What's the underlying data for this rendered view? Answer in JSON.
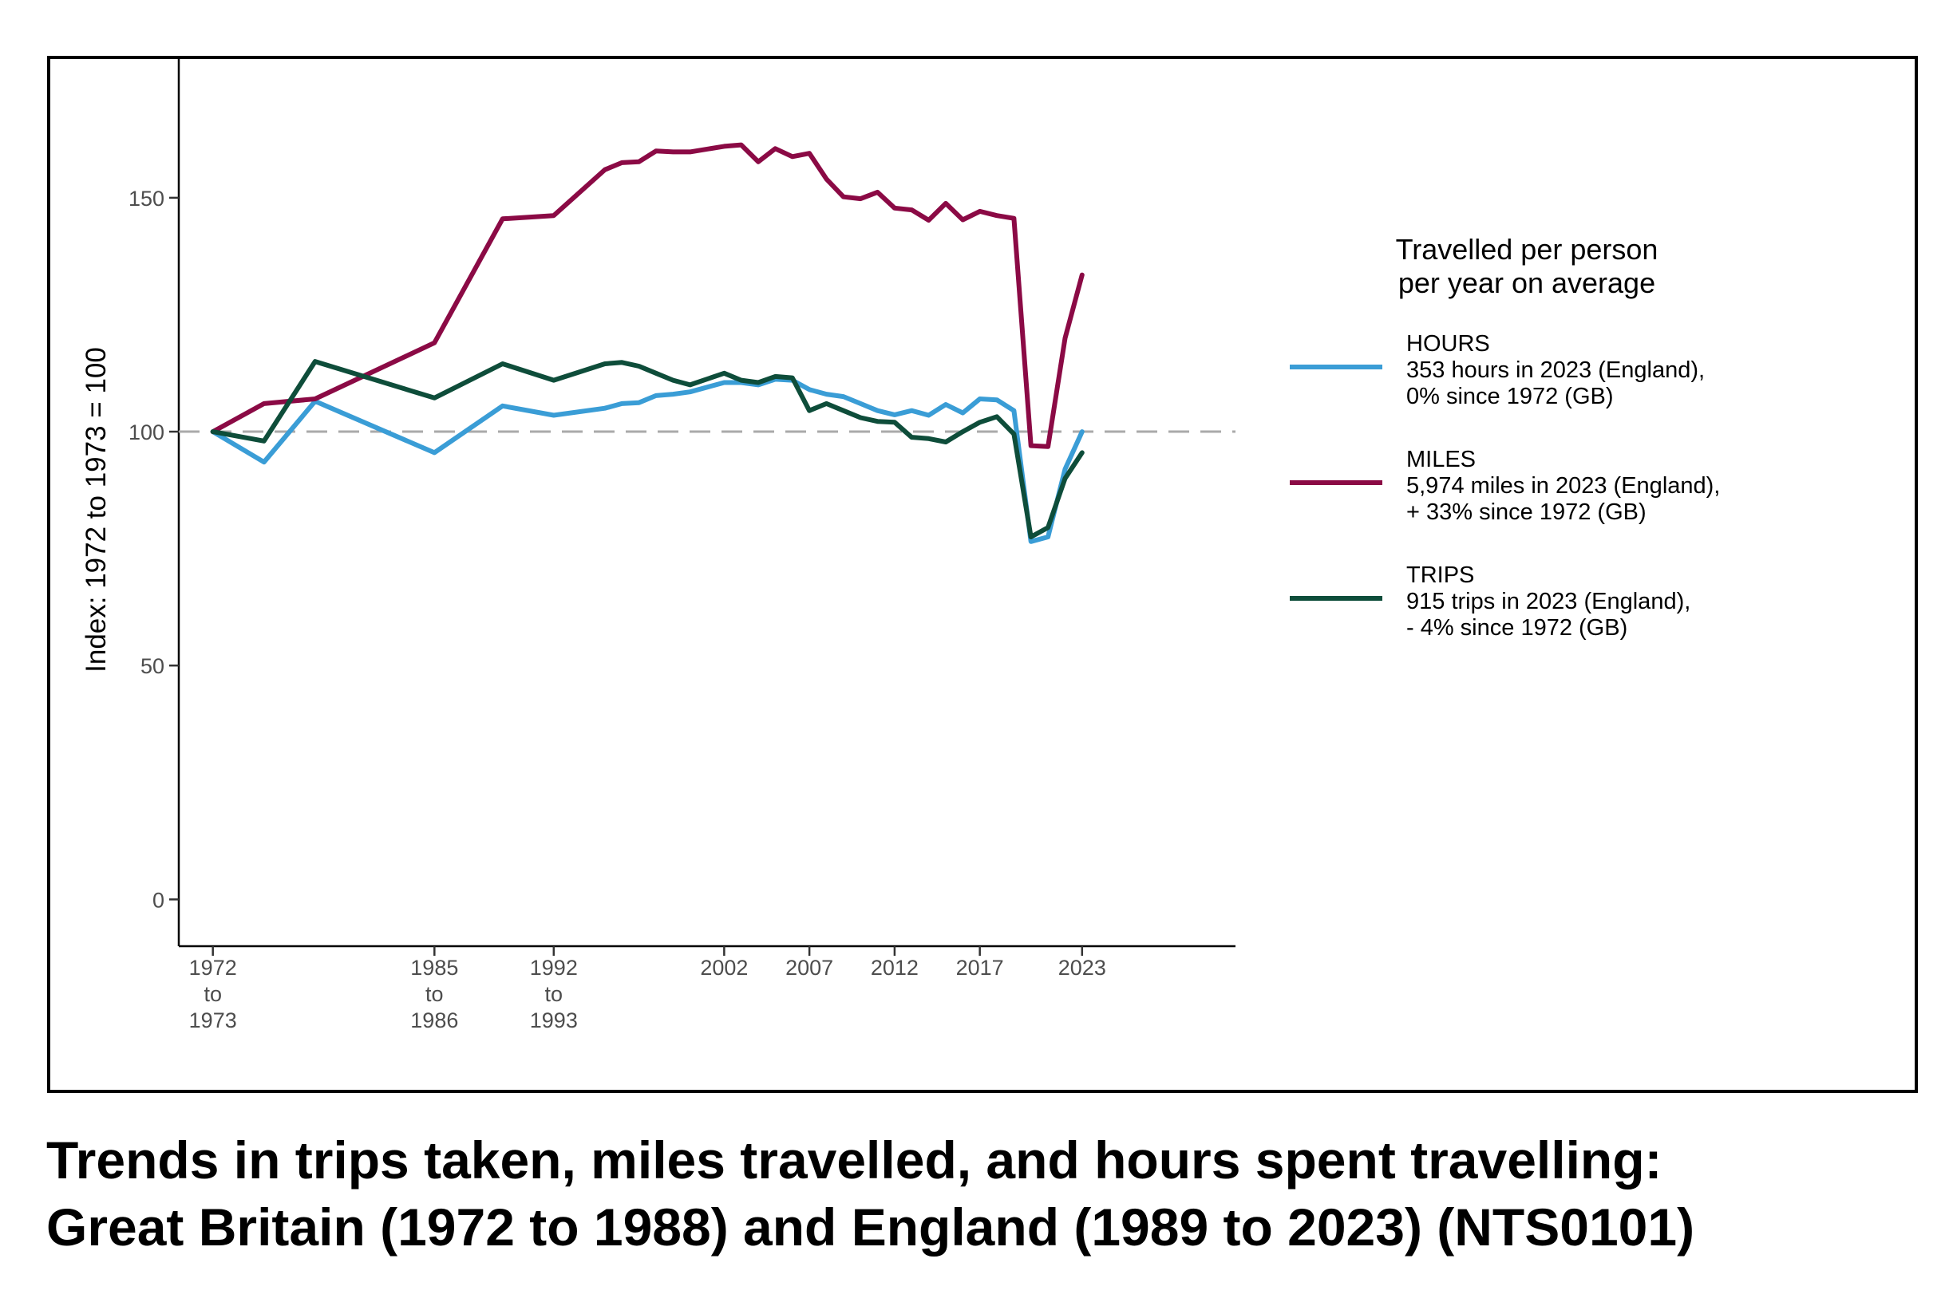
{
  "chart_data": {
    "type": "line",
    "ylabel": "Index: 1972 to 1973 = 100",
    "xlabel": "",
    "ylim": [
      -10,
      180
    ],
    "xlim": [
      1970,
      2032
    ],
    "y_ticks": [
      0,
      50,
      100,
      150
    ],
    "x_ticks": [
      {
        "x": 1972,
        "label": [
          "1972",
          "to",
          "1973"
        ]
      },
      {
        "x": 1985,
        "label": [
          "1985",
          "to",
          "1986"
        ]
      },
      {
        "x": 1992,
        "label": [
          "1992",
          "to",
          "1993"
        ]
      },
      {
        "x": 2002,
        "label": [
          "2002"
        ]
      },
      {
        "x": 2007,
        "label": [
          "2007"
        ]
      },
      {
        "x": 2012,
        "label": [
          "2012"
        ]
      },
      {
        "x": 2017,
        "label": [
          "2017"
        ]
      },
      {
        "x": 2023,
        "label": [
          "2023"
        ]
      }
    ],
    "reference_line": {
      "y": 100,
      "style": "dashed",
      "color": "#aaaaaa"
    },
    "grid": false,
    "legend": {
      "placement": "right",
      "title": [
        "Travelled per person",
        "per year on average"
      ]
    },
    "series": [
      {
        "name": "HOURS",
        "description": [
          "353 hours in 2023 (England),",
          "0% since 1972 (GB)"
        ],
        "color": "#3a9dd6",
        "x": [
          1972,
          1975,
          1978,
          1985,
          1989,
          1992,
          1995,
          1996,
          1997,
          1998,
          1999,
          2000,
          2002,
          2003,
          2004,
          2005,
          2006,
          2007,
          2008,
          2009,
          2010,
          2011,
          2012,
          2013,
          2014,
          2015,
          2016,
          2017,
          2018,
          2019,
          2020,
          2021,
          2022,
          2023
        ],
        "y": [
          100,
          93.5,
          106.5,
          95.5,
          105.5,
          103.5,
          105,
          106,
          106.2,
          107.7,
          108,
          108.5,
          110.5,
          110.5,
          110,
          111.2,
          111,
          109,
          108,
          107.5,
          106,
          104.5,
          103.6,
          104.5,
          103.5,
          105.8,
          104,
          107,
          106.8,
          104.5,
          76.5,
          77.5,
          92,
          100
        ]
      },
      {
        "name": "MILES",
        "description": [
          "5,974 miles in 2023 (England),",
          "+ 33% since 1972 (GB)"
        ],
        "color": "#8b0a45",
        "x": [
          1972,
          1975,
          1978,
          1985,
          1989,
          1992,
          1995,
          1996,
          1997,
          1998,
          1999,
          2000,
          2002,
          2003,
          2004,
          2005,
          2006,
          2007,
          2008,
          2009,
          2010,
          2011,
          2012,
          2013,
          2014,
          2015,
          2016,
          2017,
          2018,
          2019,
          2020,
          2021,
          2022,
          2023
        ],
        "y": [
          100,
          106,
          107,
          119,
          145.5,
          146.2,
          156,
          157.5,
          157.7,
          160,
          159.8,
          159.8,
          161,
          161.3,
          157.7,
          160.5,
          158.8,
          159.5,
          154,
          150.2,
          149.8,
          151.2,
          147.8,
          147.4,
          145.2,
          148.8,
          145.3,
          147.1,
          146.2,
          145.6,
          97,
          96.8,
          120,
          133.5
        ]
      },
      {
        "name": "TRIPS",
        "description": [
          "915 trips in 2023 (England),",
          "- 4% since 1972 (GB)"
        ],
        "color": "#0e4d3a",
        "x": [
          1972,
          1975,
          1978,
          1985,
          1989,
          1992,
          1995,
          1996,
          1997,
          1998,
          1999,
          2000,
          2002,
          2003,
          2004,
          2005,
          2006,
          2007,
          2008,
          2009,
          2010,
          2011,
          2012,
          2013,
          2014,
          2015,
          2016,
          2017,
          2018,
          2019,
          2020,
          2021,
          2022,
          2023
        ],
        "y": [
          100,
          98,
          115,
          107.2,
          114.5,
          111,
          114.5,
          114.8,
          114,
          112.5,
          111,
          110,
          112.5,
          111,
          110.5,
          111.8,
          111.5,
          104.5,
          106,
          104.5,
          103,
          102.2,
          102,
          98.8,
          98.5,
          97.8,
          100,
          102,
          103.2,
          99.5,
          77.5,
          79.5,
          90,
          95.5
        ]
      }
    ]
  },
  "caption": {
    "line1": "Trends in trips taken, miles travelled, and hours spent travelling:",
    "line2": "Great Britain (1972 to 1988) and England (1989 to 2023) (NTS0101)"
  }
}
